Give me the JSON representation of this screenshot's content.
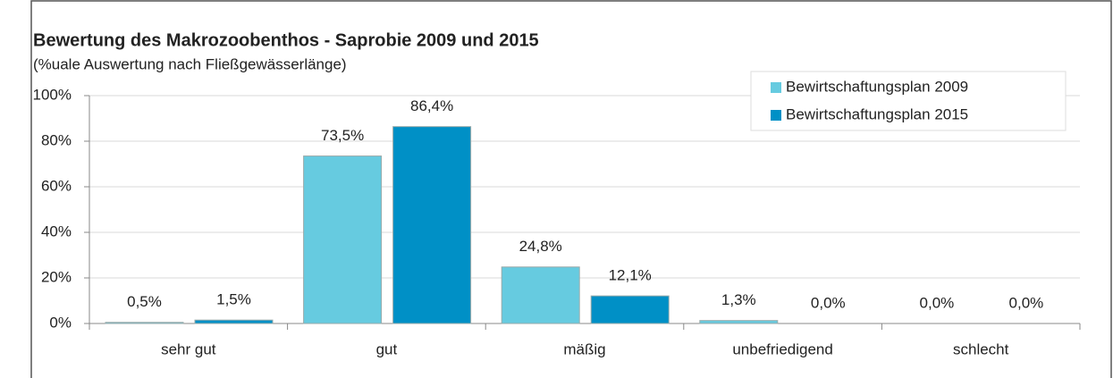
{
  "chart_data": {
    "type": "bar",
    "title": "Bewertung des Makrozoobenthos - Saprobie 2009 und 2015",
    "subtitle": "(%uale Auswertung nach Fließgewässerlänge)",
    "categories": [
      "sehr gut",
      "gut",
      "mäßig",
      "unbefriedigend",
      "schlecht"
    ],
    "series": [
      {
        "name": "Bewirtschaftungsplan 2009",
        "color": "#66cbe0",
        "values": [
          0.5,
          73.5,
          24.8,
          1.3,
          0.0
        ],
        "value_labels": [
          "0,5%",
          "73,5%",
          "24,8%",
          "1,3%",
          "0,0%"
        ]
      },
      {
        "name": "Bewirtschaftungsplan 2015",
        "color": "#0090c6",
        "values": [
          1.5,
          86.4,
          12.1,
          0.0,
          0.0
        ],
        "value_labels": [
          "1,5%",
          "86,4%",
          "12,1%",
          "0,0%",
          "0,0%"
        ]
      }
    ],
    "ylim": [
      0,
      100
    ],
    "yticks": [
      {
        "value": 0,
        "label": "0%"
      },
      {
        "value": 20,
        "label": "20%"
      },
      {
        "value": 40,
        "label": "40%"
      },
      {
        "value": 60,
        "label": "60%"
      },
      {
        "value": 80,
        "label": "80%"
      },
      {
        "value": 100,
        "label": "100%"
      }
    ],
    "grid": true,
    "legend": "top-right"
  }
}
